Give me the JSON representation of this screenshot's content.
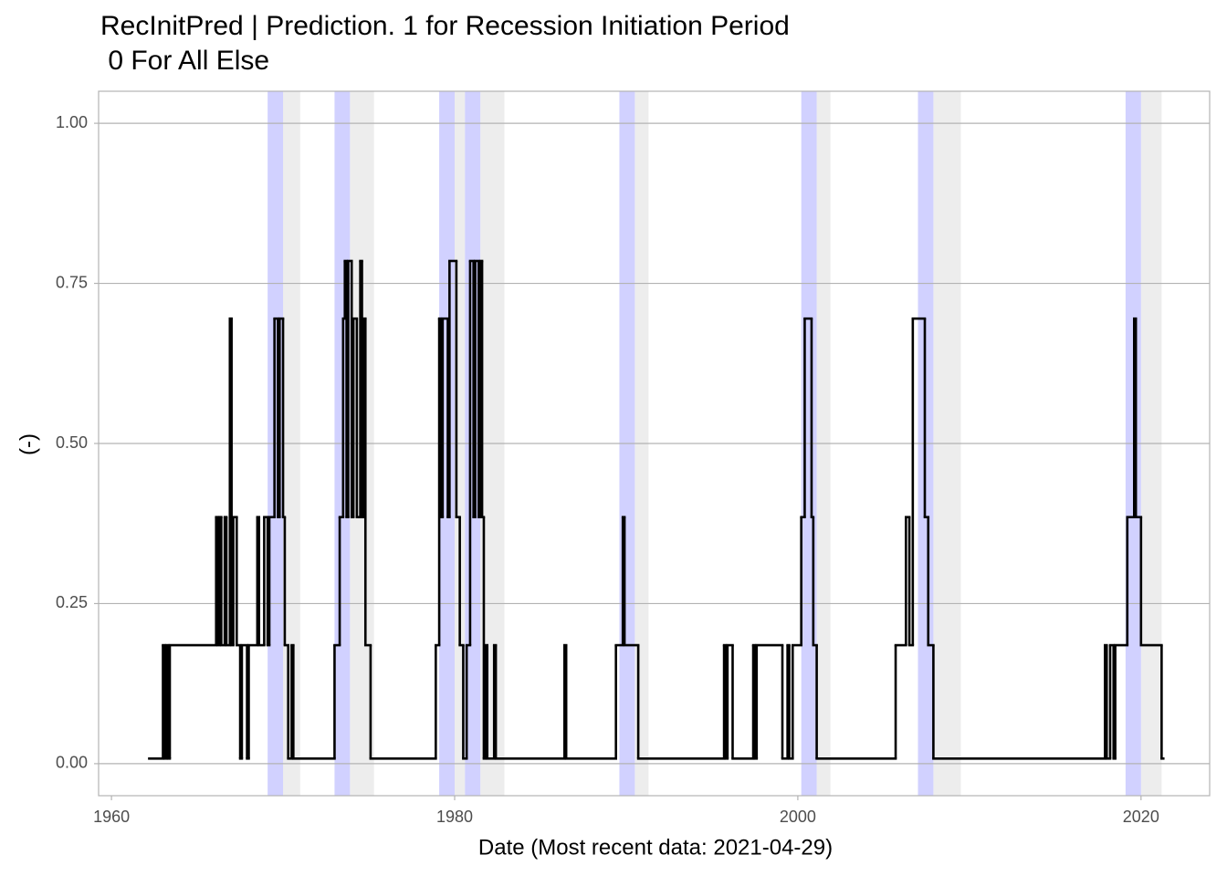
{
  "chart_data": {
    "type": "step-line",
    "title": "RecInitPred | Prediction. 1 for Recession Initiation Period",
    "subtitle": " 0 For All Else",
    "x_label": "Date (Most recent data: 2021-04-29)",
    "y_label": "(-)",
    "xlim": [
      1959.25,
      2024.0
    ],
    "ylim": [
      -0.05,
      1.05
    ],
    "xticks": [
      1960,
      1980,
      2000,
      2020
    ],
    "yticks": [
      {
        "value": 0,
        "label": "0.00"
      },
      {
        "value": 0.25,
        "label": "0.25"
      },
      {
        "value": 0.5,
        "label": "0.50"
      },
      {
        "value": 0.75,
        "label": "0.75"
      },
      {
        "value": 1,
        "label": "1.00"
      }
    ],
    "grid": true,
    "highlight_ranges": {
      "color": "#ccccff",
      "ranges": [
        [
          1969.1,
          1970.0
        ],
        [
          1973.0,
          1973.9
        ],
        [
          1979.1,
          1980.0
        ],
        [
          1980.6,
          1981.5
        ],
        [
          1989.6,
          1990.5
        ],
        [
          2000.2,
          2001.1
        ],
        [
          2007.0,
          2007.9
        ],
        [
          2019.1,
          2020.0
        ]
      ]
    },
    "shaded_ranges": {
      "color": "#ebebeb",
      "ranges": [
        [
          1970.0,
          1971.0
        ],
        [
          1973.9,
          1975.3
        ],
        [
          1980.0,
          1980.6
        ],
        [
          1981.5,
          1982.9
        ],
        [
          1990.5,
          1991.3
        ],
        [
          2001.1,
          2001.9
        ],
        [
          2007.9,
          2009.5
        ],
        [
          2020.0,
          2021.2
        ]
      ]
    },
    "color": "#000000",
    "x": [
      1962.2,
      1963.0,
      1963.1,
      1963.2,
      1963.3,
      1963.4,
      1966.1,
      1966.2,
      1966.3,
      1966.4,
      1966.6,
      1966.7,
      1966.9,
      1967.0,
      1967.1,
      1967.3,
      1967.5,
      1967.6,
      1967.9,
      1968.0,
      1968.5,
      1968.6,
      1968.9,
      1969.1,
      1969.2,
      1969.5,
      1969.7,
      1969.8,
      1970.0,
      1970.1,
      1970.3,
      1970.5,
      1970.6,
      1973.0,
      1973.3,
      1973.5,
      1973.6,
      1973.7,
      1973.8,
      1974.0,
      1974.1,
      1974.3,
      1974.5,
      1974.6,
      1974.7,
      1974.8,
      1975.1,
      1978.9,
      1979.1,
      1979.2,
      1979.3,
      1979.6,
      1979.7,
      1980.1,
      1980.3,
      1980.5,
      1980.7,
      1980.9,
      1981.1,
      1981.2,
      1981.4,
      1981.5,
      1981.6,
      1981.7,
      1981.8,
      1981.9,
      1982.3,
      1982.4,
      1986.4,
      1986.5,
      1989.4,
      1989.8,
      1989.9,
      1990.7,
      1995.7,
      1995.8,
      1995.9,
      1996.2,
      1997.4,
      1997.5,
      1997.6,
      1999.1,
      1999.4,
      1999.5,
      1999.7,
      2000.2,
      2000.4,
      2000.8,
      2000.9,
      2001.1,
      2005.7,
      2006.3,
      2006.5,
      2006.7,
      2007.4,
      2007.6,
      2007.9,
      2017.9,
      2018.0,
      2018.2,
      2018.4,
      2018.5,
      2019.2,
      2019.6,
      2019.7,
      2020.0,
      2021.2,
      2021.3
    ],
    "values": [
      0.008,
      0.185,
      0.008,
      0.185,
      0.008,
      0.185,
      0.385,
      0.185,
      0.385,
      0.185,
      0.385,
      0.185,
      0.695,
      0.185,
      0.385,
      0.185,
      0.008,
      0.185,
      0.008,
      0.185,
      0.385,
      0.185,
      0.385,
      0.185,
      0.385,
      0.695,
      0.385,
      0.695,
      0.385,
      0.185,
      0.008,
      0.185,
      0.008,
      0.185,
      0.385,
      0.695,
      0.785,
      0.385,
      0.785,
      0.385,
      0.695,
      0.385,
      0.785,
      0.385,
      0.695,
      0.185,
      0.008,
      0.185,
      0.695,
      0.385,
      0.695,
      0.385,
      0.785,
      0.385,
      0.185,
      0.008,
      0.185,
      0.785,
      0.385,
      0.785,
      0.385,
      0.785,
      0.385,
      0.008,
      0.185,
      0.008,
      0.185,
      0.008,
      0.185,
      0.008,
      0.185,
      0.385,
      0.185,
      0.008,
      0.185,
      0.008,
      0.185,
      0.008,
      0.185,
      0.008,
      0.185,
      0.008,
      0.185,
      0.008,
      0.185,
      0.385,
      0.695,
      0.385,
      0.185,
      0.008,
      0.185,
      0.385,
      0.185,
      0.695,
      0.385,
      0.185,
      0.008,
      0.185,
      0.008,
      0.185,
      0.008,
      0.185,
      0.385,
      0.695,
      0.385,
      0.185,
      0.008,
      0.008
    ]
  }
}
